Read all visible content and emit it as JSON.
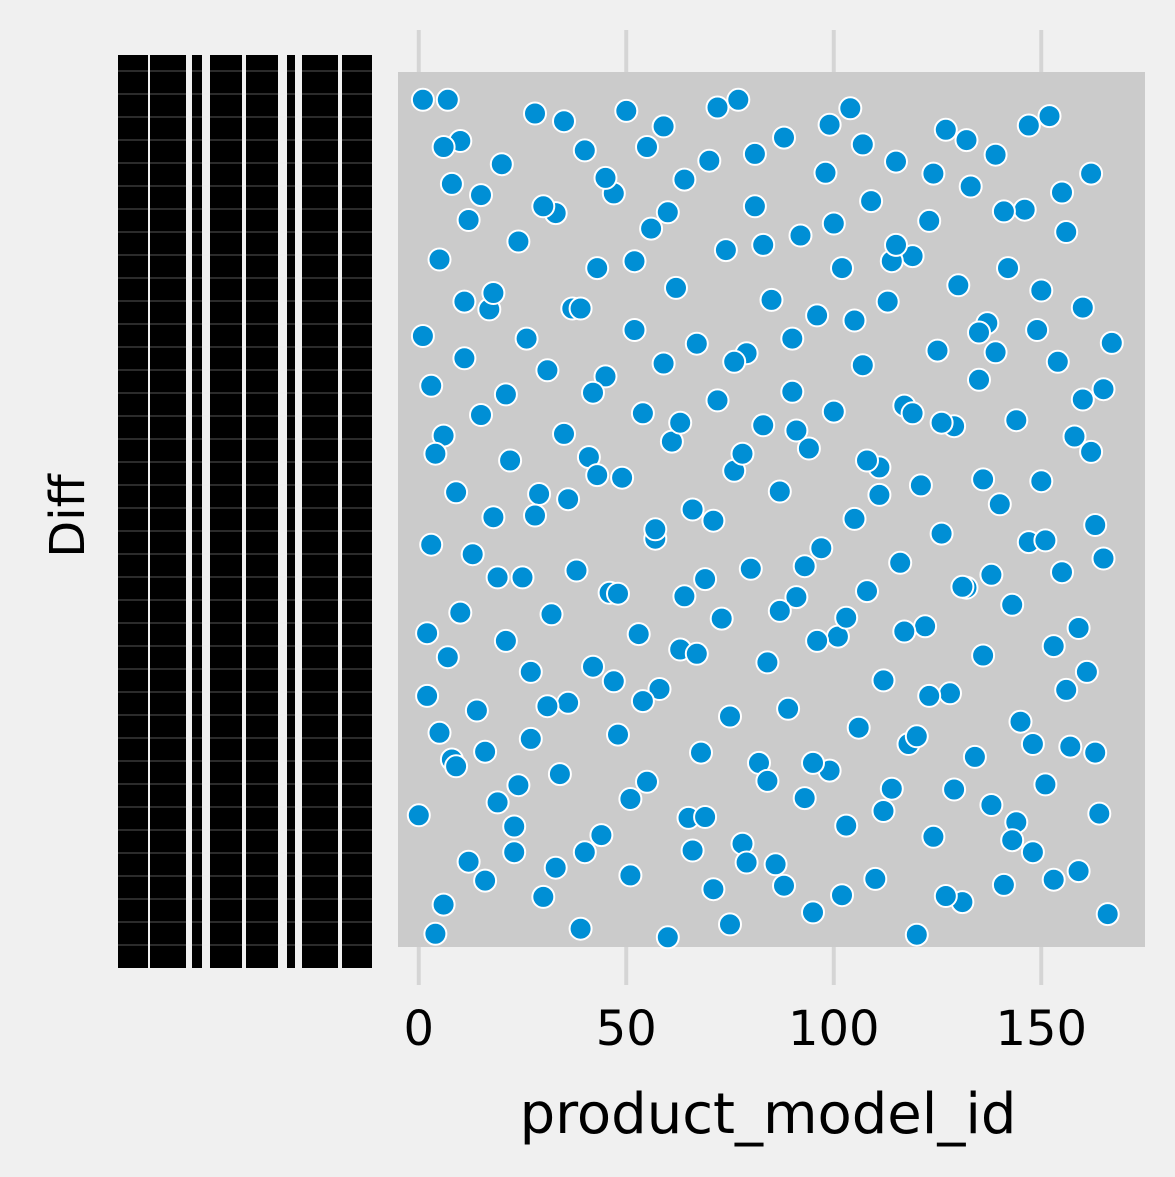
{
  "chart_data": {
    "type": "scatter",
    "title": "",
    "xlabel": "product_model_id",
    "ylabel": "Diff",
    "xlim": [
      -5,
      175
    ],
    "x_ticks": [
      "0",
      "50",
      "100",
      "150"
    ],
    "x_tick_values": [
      0,
      50,
      100,
      150
    ],
    "y_axis": "categorical; very many overlapping tick labels rendered as dense black columns (unreadable)",
    "grid": true,
    "legend": "none",
    "colors": {
      "background": "#f0f0f0",
      "plot_area": "#cbcbcb",
      "grid": "#d5d5d5",
      "marker": "#008fd5",
      "marker_edge": "#ffffff",
      "tick_text": "#000000"
    },
    "series": [
      {
        "points": [
          {
            "x": 0,
            "y": 0.144
          },
          {
            "x": 1,
            "y": 0.702
          },
          {
            "x": 1,
            "y": 0.977
          },
          {
            "x": 2,
            "y": 0.283
          },
          {
            "x": 3,
            "y": 0.644
          },
          {
            "x": 3,
            "y": 0.459
          },
          {
            "x": 4,
            "y": 0.006
          },
          {
            "x": 5,
            "y": 0.24
          },
          {
            "x": 5,
            "y": 0.791
          },
          {
            "x": 6,
            "y": 0.04
          },
          {
            "x": 6,
            "y": 0.586
          },
          {
            "x": 7,
            "y": 0.328
          },
          {
            "x": 8,
            "y": 0.209
          },
          {
            "x": 8,
            "y": 0.879
          },
          {
            "x": 9,
            "y": 0.52
          },
          {
            "x": 10,
            "y": 0.929
          },
          {
            "x": 10,
            "y": 0.38
          },
          {
            "x": 11,
            "y": 0.676
          },
          {
            "x": 12,
            "y": 0.837
          },
          {
            "x": 13,
            "y": 0.448
          },
          {
            "x": 14,
            "y": 0.266
          },
          {
            "x": 15,
            "y": 0.61
          },
          {
            "x": 16,
            "y": 0.068
          },
          {
            "x": 17,
            "y": 0.733
          },
          {
            "x": 18,
            "y": 0.491
          },
          {
            "x": 19,
            "y": 0.159
          },
          {
            "x": 20,
            "y": 0.902
          },
          {
            "x": 21,
            "y": 0.347
          },
          {
            "x": 22,
            "y": 0.557
          },
          {
            "x": 23,
            "y": 0.101
          },
          {
            "x": 24,
            "y": 0.812
          },
          {
            "x": 25,
            "y": 0.421
          },
          {
            "x": 26,
            "y": 0.699
          },
          {
            "x": 27,
            "y": 0.233
          },
          {
            "x": 28,
            "y": 0.961
          },
          {
            "x": 29,
            "y": 0.518
          },
          {
            "x": 30,
            "y": 0.049
          },
          {
            "x": 31,
            "y": 0.662
          },
          {
            "x": 32,
            "y": 0.378
          },
          {
            "x": 33,
            "y": 0.845
          },
          {
            "x": 34,
            "y": 0.192
          },
          {
            "x": 35,
            "y": 0.588
          },
          {
            "x": 36,
            "y": 0.275
          },
          {
            "x": 37,
            "y": 0.734
          },
          {
            "x": 38,
            "y": 0.429
          },
          {
            "x": 39,
            "y": 0.012
          },
          {
            "x": 40,
            "y": 0.918
          },
          {
            "x": 41,
            "y": 0.561
          },
          {
            "x": 42,
            "y": 0.317
          },
          {
            "x": 43,
            "y": 0.781
          },
          {
            "x": 44,
            "y": 0.121
          },
          {
            "x": 45,
            "y": 0.655
          },
          {
            "x": 46,
            "y": 0.403
          },
          {
            "x": 47,
            "y": 0.868
          },
          {
            "x": 48,
            "y": 0.238
          },
          {
            "x": 49,
            "y": 0.537
          },
          {
            "x": 50,
            "y": 0.964
          },
          {
            "x": 51,
            "y": 0.074
          },
          {
            "x": 52,
            "y": 0.709
          },
          {
            "x": 53,
            "y": 0.355
          },
          {
            "x": 54,
            "y": 0.612
          },
          {
            "x": 55,
            "y": 0.183
          },
          {
            "x": 56,
            "y": 0.827
          },
          {
            "x": 57,
            "y": 0.466
          },
          {
            "x": 58,
            "y": 0.291
          },
          {
            "x": 59,
            "y": 0.946
          },
          {
            "x": 60,
            "y": 0.002
          },
          {
            "x": 61,
            "y": 0.579
          },
          {
            "x": 62,
            "y": 0.758
          },
          {
            "x": 63,
            "y": 0.337
          },
          {
            "x": 64,
            "y": 0.884
          },
          {
            "x": 65,
            "y": 0.141
          },
          {
            "x": 66,
            "y": 0.5
          },
          {
            "x": 67,
            "y": 0.693
          },
          {
            "x": 68,
            "y": 0.217
          },
          {
            "x": 69,
            "y": 0.419
          },
          {
            "x": 70,
            "y": 0.906
          },
          {
            "x": 71,
            "y": 0.058
          },
          {
            "x": 72,
            "y": 0.627
          },
          {
            "x": 73,
            "y": 0.373
          },
          {
            "x": 74,
            "y": 0.802
          },
          {
            "x": 75,
            "y": 0.259
          },
          {
            "x": 76,
            "y": 0.545
          },
          {
            "x": 77,
            "y": 0.977
          },
          {
            "x": 78,
            "y": 0.111
          },
          {
            "x": 79,
            "y": 0.682
          },
          {
            "x": 80,
            "y": 0.431
          },
          {
            "x": 81,
            "y": 0.853
          },
          {
            "x": 82,
            "y": 0.205
          },
          {
            "x": 83,
            "y": 0.598
          },
          {
            "x": 84,
            "y": 0.322
          },
          {
            "x": 85,
            "y": 0.744
          },
          {
            "x": 86,
            "y": 0.087
          },
          {
            "x": 87,
            "y": 0.521
          },
          {
            "x": 88,
            "y": 0.933
          },
          {
            "x": 89,
            "y": 0.268
          },
          {
            "x": 90,
            "y": 0.637
          },
          {
            "x": 91,
            "y": 0.398
          },
          {
            "x": 92,
            "y": 0.819
          },
          {
            "x": 93,
            "y": 0.164
          },
          {
            "x": 94,
            "y": 0.571
          },
          {
            "x": 95,
            "y": 0.031
          },
          {
            "x": 96,
            "y": 0.726
          },
          {
            "x": 97,
            "y": 0.455
          },
          {
            "x": 98,
            "y": 0.892
          },
          {
            "x": 99,
            "y": 0.196
          },
          {
            "x": 100,
            "y": 0.614
          },
          {
            "x": 101,
            "y": 0.352
          },
          {
            "x": 102,
            "y": 0.781
          },
          {
            "x": 103,
            "y": 0.132
          },
          {
            "x": 104,
            "y": 0.967
          },
          {
            "x": 105,
            "y": 0.489
          },
          {
            "x": 106,
            "y": 0.246
          },
          {
            "x": 107,
            "y": 0.668
          },
          {
            "x": 108,
            "y": 0.405
          },
          {
            "x": 109,
            "y": 0.859
          },
          {
            "x": 110,
            "y": 0.07
          },
          {
            "x": 111,
            "y": 0.549
          },
          {
            "x": 112,
            "y": 0.301
          },
          {
            "x": 113,
            "y": 0.742
          },
          {
            "x": 114,
            "y": 0.175
          },
          {
            "x": 115,
            "y": 0.905
          },
          {
            "x": 116,
            "y": 0.438
          },
          {
            "x": 117,
            "y": 0.621
          },
          {
            "x": 118,
            "y": 0.227
          },
          {
            "x": 119,
            "y": 0.795
          },
          {
            "x": 120,
            "y": 0.005
          },
          {
            "x": 121,
            "y": 0.528
          },
          {
            "x": 122,
            "y": 0.364
          },
          {
            "x": 123,
            "y": 0.836
          },
          {
            "x": 124,
            "y": 0.119
          },
          {
            "x": 125,
            "y": 0.685
          },
          {
            "x": 126,
            "y": 0.472
          },
          {
            "x": 127,
            "y": 0.942
          },
          {
            "x": 128,
            "y": 0.286
          },
          {
            "x": 129,
            "y": 0.597
          },
          {
            "x": 130,
            "y": 0.761
          },
          {
            "x": 131,
            "y": 0.043
          },
          {
            "x": 132,
            "y": 0.409
          },
          {
            "x": 133,
            "y": 0.876
          },
          {
            "x": 134,
            "y": 0.212
          },
          {
            "x": 135,
            "y": 0.651
          },
          {
            "x": 136,
            "y": 0.33
          },
          {
            "x": 137,
            "y": 0.717
          },
          {
            "x": 138,
            "y": 0.156
          },
          {
            "x": 139,
            "y": 0.913
          },
          {
            "x": 140,
            "y": 0.506
          },
          {
            "x": 141,
            "y": 0.063
          },
          {
            "x": 142,
            "y": 0.781
          },
          {
            "x": 143,
            "y": 0.389
          },
          {
            "x": 144,
            "y": 0.604
          },
          {
            "x": 145,
            "y": 0.253
          },
          {
            "x": 146,
            "y": 0.849
          },
          {
            "x": 147,
            "y": 0.462
          },
          {
            "x": 148,
            "y": 0.101
          },
          {
            "x": 149,
            "y": 0.709
          },
          {
            "x": 150,
            "y": 0.533
          },
          {
            "x": 151,
            "y": 0.18
          },
          {
            "x": 152,
            "y": 0.958
          },
          {
            "x": 153,
            "y": 0.341
          },
          {
            "x": 154,
            "y": 0.672
          },
          {
            "x": 155,
            "y": 0.427
          },
          {
            "x": 156,
            "y": 0.823
          },
          {
            "x": 157,
            "y": 0.224
          },
          {
            "x": 158,
            "y": 0.585
          },
          {
            "x": 159,
            "y": 0.079
          },
          {
            "x": 160,
            "y": 0.735
          },
          {
            "x": 161,
            "y": 0.311
          },
          {
            "x": 162,
            "y": 0.891
          },
          {
            "x": 163,
            "y": 0.482
          },
          {
            "x": 164,
            "y": 0.146
          },
          {
            "x": 165,
            "y": 0.64
          },
          {
            "x": 166,
            "y": 0.029
          },
          {
            "x": 2,
            "y": 0.356
          },
          {
            "x": 6,
            "y": 0.922
          },
          {
            "x": 12,
            "y": 0.09
          },
          {
            "x": 18,
            "y": 0.752
          },
          {
            "x": 24,
            "y": 0.179
          },
          {
            "x": 30,
            "y": 0.853
          },
          {
            "x": 36,
            "y": 0.512
          },
          {
            "x": 42,
            "y": 0.636
          },
          {
            "x": 48,
            "y": 0.402
          },
          {
            "x": 54,
            "y": 0.277
          },
          {
            "x": 60,
            "y": 0.846
          },
          {
            "x": 66,
            "y": 0.103
          },
          {
            "x": 72,
            "y": 0.968
          },
          {
            "x": 78,
            "y": 0.565
          },
          {
            "x": 84,
            "y": 0.184
          },
          {
            "x": 90,
            "y": 0.699
          },
          {
            "x": 96,
            "y": 0.347
          },
          {
            "x": 102,
            "y": 0.051
          },
          {
            "x": 108,
            "y": 0.557
          },
          {
            "x": 114,
            "y": 0.789
          },
          {
            "x": 120,
            "y": 0.236
          },
          {
            "x": 126,
            "y": 0.601
          },
          {
            "x": 132,
            "y": 0.93
          },
          {
            "x": 138,
            "y": 0.424
          },
          {
            "x": 144,
            "y": 0.136
          },
          {
            "x": 150,
            "y": 0.755
          },
          {
            "x": 156,
            "y": 0.29
          },
          {
            "x": 162,
            "y": 0.567
          },
          {
            "x": 9,
            "y": 0.201
          },
          {
            "x": 21,
            "y": 0.634
          },
          {
            "x": 33,
            "y": 0.083
          },
          {
            "x": 45,
            "y": 0.886
          },
          {
            "x": 57,
            "y": 0.477
          },
          {
            "x": 69,
            "y": 0.142
          },
          {
            "x": 81,
            "y": 0.914
          },
          {
            "x": 93,
            "y": 0.434
          },
          {
            "x": 105,
            "y": 0.72
          },
          {
            "x": 117,
            "y": 0.358
          },
          {
            "x": 129,
            "y": 0.174
          },
          {
            "x": 141,
            "y": 0.847
          },
          {
            "x": 153,
            "y": 0.069
          },
          {
            "x": 165,
            "y": 0.443
          },
          {
            "x": 15,
            "y": 0.866
          },
          {
            "x": 27,
            "y": 0.311
          },
          {
            "x": 39,
            "y": 0.734
          },
          {
            "x": 51,
            "y": 0.163
          },
          {
            "x": 63,
            "y": 0.601
          },
          {
            "x": 75,
            "y": 0.017
          },
          {
            "x": 87,
            "y": 0.382
          },
          {
            "x": 99,
            "y": 0.948
          },
          {
            "x": 111,
            "y": 0.517
          },
          {
            "x": 123,
            "y": 0.283
          },
          {
            "x": 135,
            "y": 0.706
          },
          {
            "x": 147,
            "y": 0.947
          },
          {
            "x": 159,
            "y": 0.362
          },
          {
            "x": 4,
            "y": 0.565
          },
          {
            "x": 16,
            "y": 0.218
          },
          {
            "x": 28,
            "y": 0.493
          },
          {
            "x": 40,
            "y": 0.101
          },
          {
            "x": 52,
            "y": 0.789
          },
          {
            "x": 64,
            "y": 0.399
          },
          {
            "x": 76,
            "y": 0.672
          },
          {
            "x": 88,
            "y": 0.062
          },
          {
            "x": 100,
            "y": 0.833
          },
          {
            "x": 112,
            "y": 0.149
          },
          {
            "x": 124,
            "y": 0.891
          },
          {
            "x": 136,
            "y": 0.535
          },
          {
            "x": 148,
            "y": 0.227
          },
          {
            "x": 160,
            "y": 0.628
          },
          {
            "x": 7,
            "y": 0.977
          },
          {
            "x": 19,
            "y": 0.421
          },
          {
            "x": 31,
            "y": 0.271
          },
          {
            "x": 43,
            "y": 0.54
          },
          {
            "x": 55,
            "y": 0.922
          },
          {
            "x": 67,
            "y": 0.332
          },
          {
            "x": 79,
            "y": 0.089
          },
          {
            "x": 91,
            "y": 0.592
          },
          {
            "x": 103,
            "y": 0.374
          },
          {
            "x": 115,
            "y": 0.808
          },
          {
            "x": 127,
            "y": 0.05
          },
          {
            "x": 139,
            "y": 0.683
          },
          {
            "x": 151,
            "y": 0.464
          },
          {
            "x": 163,
            "y": 0.217
          },
          {
            "x": 11,
            "y": 0.742
          },
          {
            "x": 23,
            "y": 0.131
          },
          {
            "x": 35,
            "y": 0.952
          },
          {
            "x": 47,
            "y": 0.3
          },
          {
            "x": 59,
            "y": 0.67
          },
          {
            "x": 71,
            "y": 0.487
          },
          {
            "x": 83,
            "y": 0.808
          },
          {
            "x": 95,
            "y": 0.205
          },
          {
            "x": 107,
            "y": 0.925
          },
          {
            "x": 119,
            "y": 0.612
          },
          {
            "x": 131,
            "y": 0.41
          },
          {
            "x": 143,
            "y": 0.115
          },
          {
            "x": 155,
            "y": 0.869
          },
          {
            "x": 167,
            "y": 0.694
          }
        ]
      }
    ]
  }
}
